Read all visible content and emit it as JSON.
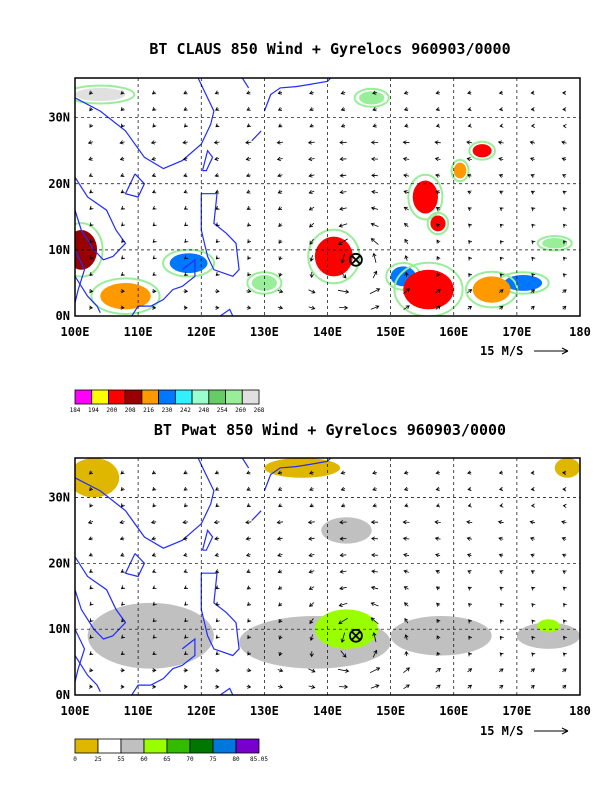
{
  "colors": {
    "land_outline": "#1f2cff",
    "grid": "#000000",
    "arrow": "#000000"
  },
  "chart_data": [
    {
      "type": "heatmap",
      "title": "BT CLAUS 850 Wind + Gyrelocs 960903/0000",
      "xlim": [
        100,
        180
      ],
      "ylim": [
        0,
        36
      ],
      "x_tick_labels": [
        "100E",
        "110E",
        "120E",
        "130E",
        "140E",
        "150E",
        "160E",
        "170E",
        "180"
      ],
      "y_tick_labels": [
        "0N",
        "10N",
        "20N",
        "30N"
      ],
      "grid": "dashed",
      "vector_key": "15 M/S",
      "colorbar": {
        "labels": [
          "184",
          "194",
          "200",
          "208",
          "216",
          "230",
          "242",
          "248",
          "254",
          "260",
          "268"
        ],
        "colors": [
          "#ff00ff",
          "#ffff00",
          "#ff0000",
          "#990000",
          "#ff9900",
          "#0077ff",
          "#33eeff",
          "#99ffcc",
          "#66cc66",
          "#99ee99",
          "#e0e0e0"
        ]
      },
      "gyre_center": {
        "lon": 144.5,
        "lat": 8.5
      },
      "cloud_clusters": [
        {
          "lon": 101,
          "lat": 10,
          "rx": 2.5,
          "ry": 3,
          "level": "#990000"
        },
        {
          "lon": 108,
          "lat": 3,
          "rx": 4,
          "ry": 2,
          "level": "#ff9900"
        },
        {
          "lon": 118,
          "lat": 8,
          "rx": 3,
          "ry": 1.5,
          "level": "#0077ff"
        },
        {
          "lon": 141,
          "lat": 9,
          "rx": 3,
          "ry": 3,
          "level": "#ff0000"
        },
        {
          "lon": 156,
          "lat": 4,
          "rx": 4,
          "ry": 3,
          "level": "#ff0000"
        },
        {
          "lon": 166,
          "lat": 4,
          "rx": 3,
          "ry": 2,
          "level": "#ff9900"
        },
        {
          "lon": 155.5,
          "lat": 18,
          "rx": 2,
          "ry": 2.5,
          "level": "#ff0000"
        },
        {
          "lon": 157.5,
          "lat": 14,
          "rx": 1.2,
          "ry": 1.2,
          "level": "#ff0000"
        },
        {
          "lon": 161,
          "lat": 22,
          "rx": 1,
          "ry": 1.2,
          "level": "#ff9900"
        },
        {
          "lon": 164.5,
          "lat": 25,
          "rx": 1.5,
          "ry": 1,
          "level": "#ff0000"
        },
        {
          "lon": 152,
          "lat": 6,
          "rx": 2,
          "ry": 1.5,
          "level": "#0077ff"
        },
        {
          "lon": 130,
          "lat": 5,
          "rx": 2,
          "ry": 1.2,
          "level": "#99ee99"
        },
        {
          "lon": 171,
          "lat": 5,
          "rx": 3,
          "ry": 1.2,
          "level": "#0077ff"
        },
        {
          "lon": 176,
          "lat": 11,
          "rx": 2,
          "ry": 0.8,
          "level": "#99ee99"
        },
        {
          "lon": 104,
          "lat": 33.5,
          "rx": 4,
          "ry": 1,
          "level": "#e0e0e0"
        },
        {
          "lon": 147,
          "lat": 33,
          "rx": 2,
          "ry": 1,
          "level": "#99ee99"
        }
      ]
    },
    {
      "type": "heatmap",
      "title": "BT Pwat 850 Wind + Gyrelocs 960903/0000",
      "xlim": [
        100,
        180
      ],
      "ylim": [
        0,
        36
      ],
      "x_tick_labels": [
        "100E",
        "110E",
        "120E",
        "130E",
        "140E",
        "150E",
        "160E",
        "170E",
        "180"
      ],
      "y_tick_labels": [
        "0N",
        "10N",
        "20N",
        "30N"
      ],
      "grid": "dashed",
      "vector_key": "15 M/S",
      "colorbar": {
        "labels": [
          "0",
          "25",
          "55",
          "60",
          "65",
          "70",
          "75",
          "80",
          "85.05"
        ],
        "colors": [
          "#e0b700",
          "#ffffff",
          "#c0c0c0",
          "#99ff00",
          "#33bb00",
          "#007700",
          "#0077dd",
          "#7700cc"
        ]
      },
      "gyre_center": {
        "lon": 144.5,
        "lat": 9
      },
      "moisture_regions": [
        {
          "lon": 103,
          "lat": 33,
          "rx": 4,
          "ry": 3,
          "level": "#e0b700"
        },
        {
          "lon": 136,
          "lat": 34.5,
          "rx": 6,
          "ry": 1.5,
          "level": "#e0b700"
        },
        {
          "lon": 178,
          "lat": 34.5,
          "rx": 2,
          "ry": 1.5,
          "level": "#e0b700"
        },
        {
          "lon": 112,
          "lat": 9,
          "rx": 10,
          "ry": 5,
          "level": "#c0c0c0"
        },
        {
          "lon": 138,
          "lat": 8,
          "rx": 12,
          "ry": 4,
          "level": "#c0c0c0"
        },
        {
          "lon": 158,
          "lat": 9,
          "rx": 8,
          "ry": 3,
          "level": "#c0c0c0"
        },
        {
          "lon": 175,
          "lat": 9,
          "rx": 5,
          "ry": 2,
          "level": "#c0c0c0"
        },
        {
          "lon": 143,
          "lat": 25,
          "rx": 4,
          "ry": 2,
          "level": "#c0c0c0"
        },
        {
          "lon": 143,
          "lat": 10,
          "rx": 5,
          "ry": 3,
          "level": "#99ff00"
        },
        {
          "lon": 175,
          "lat": 10.5,
          "rx": 1.8,
          "ry": 1,
          "level": "#99ff00"
        }
      ]
    }
  ]
}
